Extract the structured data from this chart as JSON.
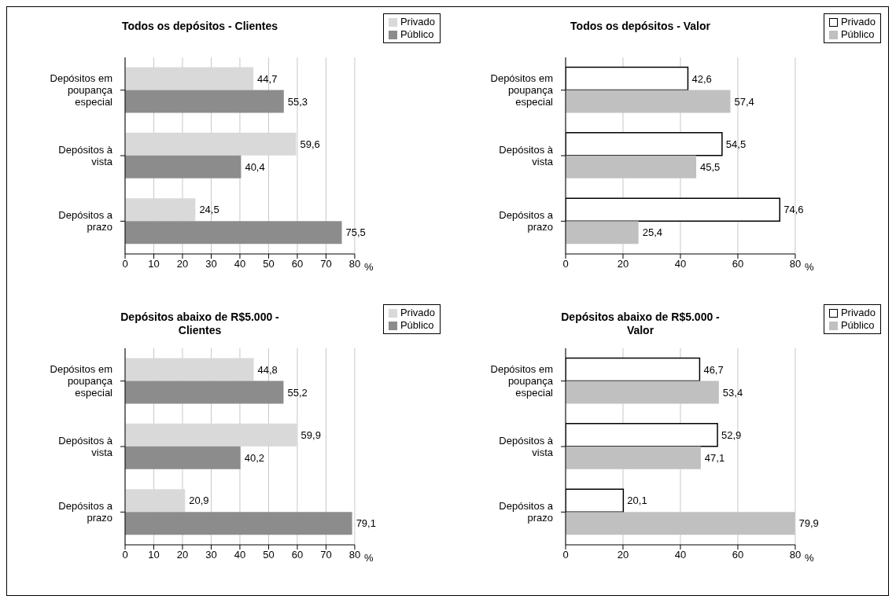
{
  "chart_data": [
    {
      "type": "bar",
      "orientation": "horizontal",
      "title": "Todos os depósitos - Clientes",
      "xlabel": "%",
      "categories": [
        "Depósitos em poupança especial",
        "Depósitos à vista",
        "Depósitos a prazo"
      ],
      "series": [
        {
          "name": "Privado",
          "color": "#d9d9d9",
          "values": [
            44.7,
            59.6,
            24.5
          ],
          "value_labels": [
            "44,7",
            "59,6",
            "24,5"
          ]
        },
        {
          "name": "Público",
          "color": "#8c8c8c",
          "values": [
            55.3,
            40.4,
            75.5
          ],
          "value_labels": [
            "55,3",
            "40,4",
            "75,5"
          ]
        }
      ],
      "xlim": [
        0,
        80
      ],
      "xticks": [
        0,
        10,
        20,
        30,
        40,
        50,
        60,
        70,
        80
      ],
      "grid": "x",
      "legend": "top right"
    },
    {
      "type": "bar",
      "orientation": "horizontal",
      "title": "Todos os depósitos - Valor",
      "xlabel": "%",
      "categories": [
        "Depósitos em poupança especial",
        "Depósitos à vista",
        "Depósitos a prazo"
      ],
      "series": [
        {
          "name": "Privado",
          "color": "#ffffff",
          "values": [
            42.6,
            54.5,
            74.6
          ],
          "value_labels": [
            "42,6",
            "54,5",
            "74,6"
          ]
        },
        {
          "name": "Público",
          "color": "#c0c0c0",
          "values": [
            57.4,
            45.5,
            25.4
          ],
          "value_labels": [
            "57,4",
            "45,5",
            "25,4"
          ]
        }
      ],
      "xlim": [
        0,
        80
      ],
      "xticks": [
        0,
        20,
        40,
        60,
        80
      ],
      "grid": "x",
      "legend": "top right"
    },
    {
      "type": "bar",
      "orientation": "horizontal",
      "title": "Depósitos abaixo de R$5.000 - Clientes",
      "xlabel": "%",
      "categories": [
        "Depósitos em poupança especial",
        "Depósitos à vista",
        "Depósitos a prazo"
      ],
      "series": [
        {
          "name": "Privado",
          "color": "#d9d9d9",
          "values": [
            44.8,
            59.9,
            20.9
          ],
          "value_labels": [
            "44,8",
            "59,9",
            "20,9"
          ]
        },
        {
          "name": "Público",
          "color": "#8c8c8c",
          "values": [
            55.2,
            40.2,
            79.1
          ],
          "value_labels": [
            "55,2",
            "40,2",
            "79,1"
          ]
        }
      ],
      "xlim": [
        0,
        80
      ],
      "xticks": [
        0,
        10,
        20,
        30,
        40,
        50,
        60,
        70,
        80
      ],
      "grid": "x",
      "legend": "top right"
    },
    {
      "type": "bar",
      "orientation": "horizontal",
      "title": "Depósitos abaixo de R$5.000 - Valor",
      "xlabel": "%",
      "categories": [
        "Depósitos em poupança especial",
        "Depósitos à vista",
        "Depósitos a prazo"
      ],
      "series": [
        {
          "name": "Privado",
          "color": "#ffffff",
          "values": [
            46.7,
            52.9,
            20.1
          ],
          "value_labels": [
            "46,7",
            "52,9",
            "20,1"
          ]
        },
        {
          "name": "Público",
          "color": "#c0c0c0",
          "values": [
            53.4,
            47.1,
            79.9
          ],
          "value_labels": [
            "53,4",
            "47,1",
            "79,9"
          ]
        }
      ],
      "xlim": [
        0,
        80
      ],
      "xticks": [
        0,
        20,
        40,
        60,
        80
      ],
      "grid": "x",
      "legend": "top right"
    }
  ]
}
